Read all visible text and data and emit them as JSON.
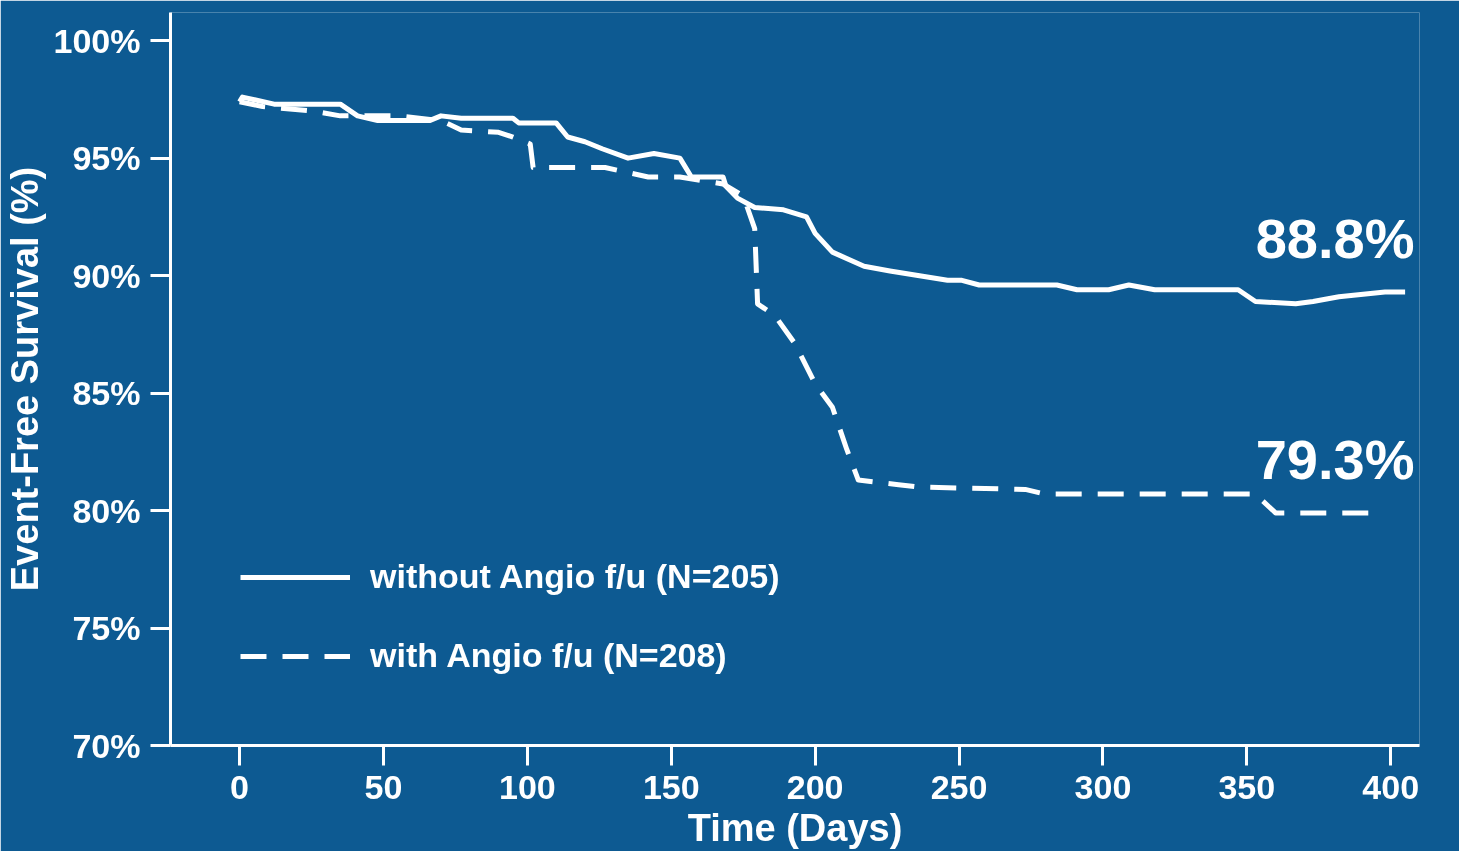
{
  "chart_data": {
    "type": "line",
    "xlabel": "Time (Days)",
    "ylabel": "Event-Free Survival (%)",
    "xlim": [
      -24,
      410
    ],
    "ylim": [
      70,
      101.2
    ],
    "xticks": [
      0,
      50,
      100,
      150,
      200,
      250,
      300,
      350,
      400
    ],
    "yticks": [
      {
        "value": 70,
        "label": "70%"
      },
      {
        "value": 75,
        "label": "75%"
      },
      {
        "value": 80,
        "label": "80%"
      },
      {
        "value": 85,
        "label": "85%"
      },
      {
        "value": 90,
        "label": "90%"
      },
      {
        "value": 95,
        "label": "95%"
      },
      {
        "value": 100,
        "label": "100%"
      }
    ],
    "grid": false,
    "legend": "bottom left",
    "marker": "none",
    "series": [
      {
        "name": "without Angio f/u (N=205)",
        "color": "#ffffff",
        "line_style": "solid",
        "x": [
          0,
          1,
          12,
          35,
          41,
          48,
          66,
          70,
          77,
          95,
          97,
          110,
          114,
          120,
          126,
          135,
          144,
          153,
          157,
          168,
          169,
          173,
          179,
          189,
          197,
          200,
          206,
          217,
          226,
          246,
          251,
          257,
          284,
          291,
          302,
          309,
          318,
          347,
          353,
          367,
          373,
          382,
          398,
          405
        ],
        "values": [
          97.4,
          97.6,
          97.3,
          97.3,
          96.8,
          96.6,
          96.6,
          96.8,
          96.7,
          96.7,
          96.5,
          96.5,
          95.9,
          95.7,
          95.4,
          95.0,
          95.2,
          95.0,
          94.2,
          94.2,
          93.8,
          93.3,
          92.9,
          92.8,
          92.5,
          91.8,
          91.0,
          90.4,
          90.2,
          89.8,
          89.8,
          89.6,
          89.6,
          89.4,
          89.4,
          89.6,
          89.4,
          89.4,
          88.9,
          88.8,
          88.9,
          89.1,
          89.3,
          89.3
        ]
      },
      {
        "name": "with Angio f/u (N=208)",
        "color": "#ffffff",
        "line_style": "dashed",
        "x": [
          0,
          8,
          26,
          35,
          55,
          70,
          77,
          90,
          95,
          101,
          102,
          120,
          127,
          142,
          153,
          168,
          175,
          179,
          180,
          186,
          193,
          200,
          206,
          211,
          215,
          229,
          236,
          273,
          280,
          353,
          360,
          393
        ],
        "values": [
          97.4,
          97.2,
          97.0,
          96.8,
          96.8,
          96.6,
          96.2,
          96.1,
          95.9,
          95.6,
          94.6,
          94.6,
          94.6,
          94.2,
          94.2,
          93.9,
          93.4,
          92.0,
          88.8,
          88.3,
          87.1,
          85.4,
          84.4,
          82.6,
          81.3,
          81.1,
          81.0,
          80.9,
          80.7,
          80.7,
          79.9,
          79.9
        ]
      }
    ],
    "annotations": [
      "88.8%",
      "79.3%"
    ]
  }
}
